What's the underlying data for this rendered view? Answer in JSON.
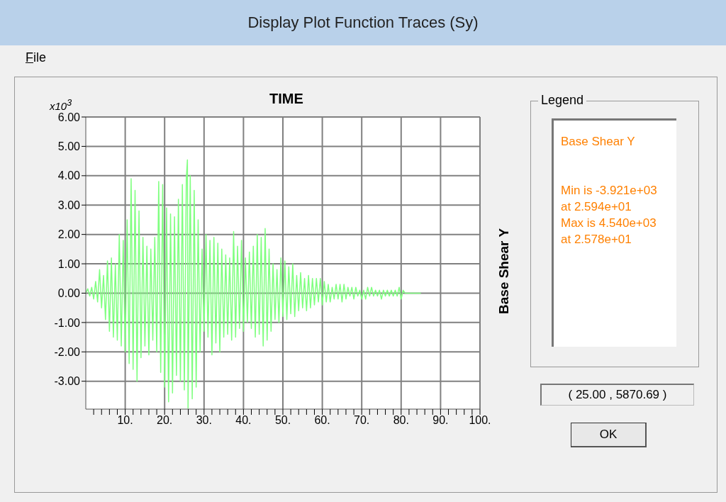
{
  "chart_data": {
    "type": "line",
    "title": "Display Plot Function Traces (Sy)",
    "xlabel": "TIME",
    "ylabel": "Base Shear Y",
    "legend_title": "Legend",
    "legend": "right",
    "grid": true,
    "marker": "none",
    "line_style": "solid",
    "xlim": [
      0,
      100
    ],
    "ylim": [
      -3.95,
      6
    ],
    "xticks": [
      {
        "value": 2,
        "label": null
      },
      {
        "value": 4,
        "label": null
      },
      {
        "value": 6,
        "label": null
      },
      {
        "value": 8,
        "label": null
      },
      {
        "value": 10,
        "label": "10."
      },
      {
        "value": 12,
        "label": null
      },
      {
        "value": 14,
        "label": null
      },
      {
        "value": 16,
        "label": null
      },
      {
        "value": 18,
        "label": null
      },
      {
        "value": 20,
        "label": "20."
      },
      {
        "value": 22,
        "label": null
      },
      {
        "value": 24,
        "label": null
      },
      {
        "value": 26,
        "label": null
      },
      {
        "value": 28,
        "label": null
      },
      {
        "value": 30,
        "label": "30."
      },
      {
        "value": 32,
        "label": null
      },
      {
        "value": 34,
        "label": null
      },
      {
        "value": 36,
        "label": null
      },
      {
        "value": 38,
        "label": null
      },
      {
        "value": 40,
        "label": "40."
      },
      {
        "value": 42,
        "label": null
      },
      {
        "value": 44,
        "label": null
      },
      {
        "value": 46,
        "label": null
      },
      {
        "value": 48,
        "label": null
      },
      {
        "value": 50,
        "label": "50."
      },
      {
        "value": 52,
        "label": null
      },
      {
        "value": 54,
        "label": null
      },
      {
        "value": 56,
        "label": null
      },
      {
        "value": 58,
        "label": null
      },
      {
        "value": 60,
        "label": "60."
      },
      {
        "value": 62,
        "label": null
      },
      {
        "value": 64,
        "label": null
      },
      {
        "value": 66,
        "label": null
      },
      {
        "value": 68,
        "label": null
      },
      {
        "value": 70,
        "label": "70."
      },
      {
        "value": 72,
        "label": null
      },
      {
        "value": 74,
        "label": null
      },
      {
        "value": 76,
        "label": null
      },
      {
        "value": 78,
        "label": null
      },
      {
        "value": 80,
        "label": "80."
      },
      {
        "value": 82,
        "label": null
      },
      {
        "value": 84,
        "label": null
      },
      {
        "value": 86,
        "label": null
      },
      {
        "value": 88,
        "label": null
      },
      {
        "value": 90,
        "label": "90."
      },
      {
        "value": 92,
        "label": null
      },
      {
        "value": 94,
        "label": null
      },
      {
        "value": 96,
        "label": null
      },
      {
        "value": 98,
        "label": null
      },
      {
        "value": 100,
        "label": "100."
      }
    ],
    "yticks": [
      {
        "value": -3,
        "label": "-3.00"
      },
      {
        "value": -2,
        "label": "-2.00"
      },
      {
        "value": -1,
        "label": "-1.00"
      },
      {
        "value": 0,
        "label": "0.00"
      },
      {
        "value": 1,
        "label": "1.00"
      },
      {
        "value": 2,
        "label": "2.00"
      },
      {
        "value": 3,
        "label": "3.00"
      },
      {
        "value": 4,
        "label": "4.00"
      },
      {
        "value": 5,
        "label": "5.00"
      },
      {
        "value": 6,
        "label": "6.00"
      }
    ],
    "series": [
      {
        "name": "Base Shear Y",
        "color": "#80ff80",
        "x": [
          0,
          0.5,
          1,
          1.5,
          2,
          2.5,
          3,
          3.5,
          4,
          4.5,
          5,
          5.5,
          6,
          6.5,
          7,
          7.5,
          8,
          8.5,
          9,
          9.5,
          10,
          10.5,
          11,
          11.5,
          12,
          12.5,
          13,
          13.5,
          14,
          14.5,
          15,
          15.5,
          16,
          16.5,
          17,
          17.5,
          18,
          18.5,
          19,
          19.5,
          20,
          20.5,
          21,
          21.5,
          22,
          22.5,
          23,
          23.5,
          24,
          24.5,
          25,
          25.5,
          25.78,
          25.94,
          26.5,
          27,
          27.5,
          28,
          28.5,
          29,
          29.5,
          30,
          30.5,
          31,
          31.5,
          32,
          32.5,
          33,
          33.5,
          34,
          34.5,
          35,
          35.5,
          36,
          36.5,
          37,
          37.5,
          38,
          38.5,
          39,
          39.5,
          40,
          40.5,
          41,
          41.5,
          42,
          42.5,
          43,
          43.5,
          44,
          44.5,
          45,
          45.5,
          46,
          46.5,
          47,
          47.5,
          48,
          48.5,
          49,
          49.5,
          50,
          50.5,
          51,
          51.5,
          52,
          52.5,
          53,
          53.5,
          54,
          54.5,
          55,
          55.5,
          56,
          56.5,
          57,
          57.5,
          58,
          58.5,
          59,
          59.5,
          60,
          60.5,
          61,
          61.5,
          62,
          62.5,
          63,
          63.5,
          64,
          64.5,
          65,
          65.5,
          66,
          66.5,
          67,
          67.5,
          68,
          68.5,
          69,
          69.5,
          70,
          70.5,
          71,
          71.5,
          72,
          72.5,
          73,
          73.5,
          74,
          74.5,
          75,
          75.5,
          76,
          76.5,
          77,
          77.5,
          78,
          78.5,
          79,
          79.5,
          80,
          80.5,
          81,
          82,
          83,
          84,
          85
        ],
        "values": [
          0,
          0.15,
          -0.1,
          0.2,
          -0.2,
          0.4,
          -0.3,
          0.8,
          -0.5,
          0.6,
          -0.9,
          1.1,
          -1.3,
          1.2,
          -1.5,
          1.0,
          -1.6,
          2.0,
          -1.8,
          1.8,
          -2.0,
          2.5,
          -2.4,
          3.9,
          -2.6,
          3.5,
          -3.0,
          2.8,
          -2.2,
          1.9,
          -1.8,
          1.6,
          -2.1,
          1.5,
          -1.6,
          1.9,
          -2.0,
          3.8,
          -2.7,
          3.7,
          -3.2,
          2.9,
          -3.7,
          2.7,
          -3.4,
          2.6,
          -2.8,
          3.2,
          -3.0,
          3.7,
          -3.3,
          3.9,
          4.54,
          -3.921,
          4.0,
          -3.6,
          3.5,
          -3.2,
          2.5,
          -2.0,
          1.5,
          -1.3,
          2.0,
          -1.5,
          1.8,
          -2.1,
          1.9,
          -1.7,
          1.7,
          -2.0,
          1.5,
          -1.5,
          1.3,
          -1.4,
          1.2,
          -1.6,
          2.1,
          -1.5,
          1.6,
          -1.2,
          1.8,
          -1.3,
          1.2,
          -1.0,
          1.4,
          -1.2,
          1.6,
          -1.5,
          2.0,
          -1.4,
          1.9,
          -1.8,
          2.2,
          -1.6,
          1.5,
          -1.3,
          1.0,
          -0.9,
          0.8,
          -1.0,
          1.2,
          -0.8,
          1.1,
          -0.9,
          0.9,
          -0.7,
          1.0,
          -0.8,
          0.6,
          -0.6,
          0.7,
          -0.5,
          0.5,
          -0.6,
          0.6,
          -0.5,
          0.5,
          -0.4,
          0.5,
          -0.3,
          0.5,
          -0.4,
          0.4,
          -0.3,
          0.3,
          -0.3,
          0.2,
          -0.2,
          0.3,
          -0.2,
          0.3,
          -0.3,
          0.3,
          -0.2,
          0.2,
          -0.1,
          0.2,
          -0.2,
          0.2,
          -0.1,
          0.1,
          -0.2,
          0.1,
          -0.2,
          0.2,
          -0.1,
          0.2,
          -0.1,
          0.1,
          -0.1,
          0.1,
          -0.2,
          0.1,
          -0.1,
          0.1,
          -0.1,
          0.1,
          -0.1,
          0.1,
          -0.1,
          0.2,
          -0.2,
          0.1,
          0,
          0,
          0,
          0,
          0
        ]
      }
    ],
    "annotations": [
      "x10$^{3}$",
      "Min is -3.921e+03",
      "at 2.594e+01",
      "Max is 4.540e+03",
      "at 2.578e+01",
      "( 25.00 , 5870.69 )",
      "File",
      "OK"
    ]
  }
}
